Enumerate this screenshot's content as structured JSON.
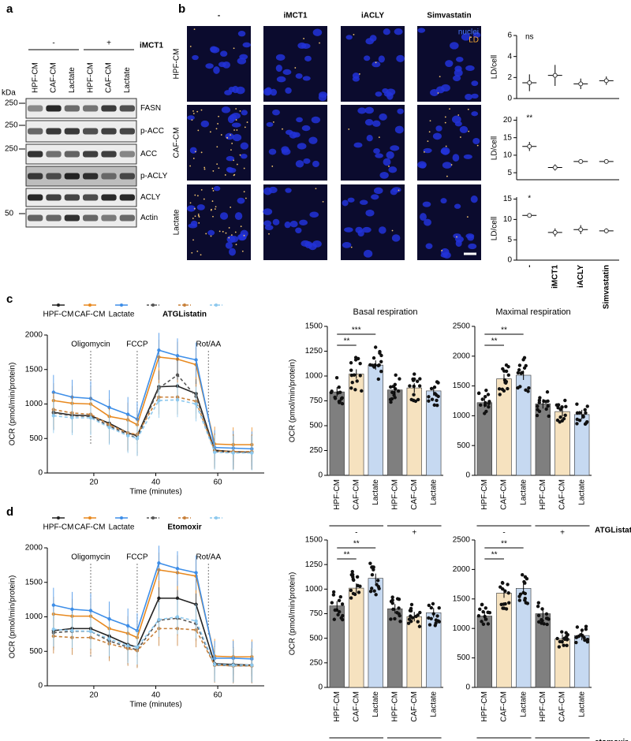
{
  "panel_labels": [
    "a",
    "b",
    "c",
    "d"
  ],
  "blot": {
    "kda_label": "kDa",
    "treatment_label": "iMCT1",
    "groups": [
      "-",
      "+"
    ],
    "lanes": [
      "HPF-CM",
      "CAF-CM",
      "Lactate",
      "HPF-CM",
      "CAF-CM",
      "Lactate"
    ],
    "rows": [
      {
        "marker": "250",
        "label": "FASN"
      },
      {
        "marker": "250",
        "label": "p-ACC"
      },
      {
        "marker": "250",
        "label": "ACC"
      },
      {
        "marker": null,
        "label": "p-ACLY"
      },
      {
        "marker": null,
        "label": "ACLY"
      },
      {
        "marker": "50",
        "label": "Actin"
      }
    ]
  },
  "microscopy": {
    "columns": [
      "-",
      "iMCT1",
      "iACLY",
      "Simvastatin"
    ],
    "rows": [
      "HPF-CM",
      "CAF-CM",
      "Lactate"
    ],
    "channels": [
      "nuclei",
      "LD"
    ]
  },
  "chart_data": [
    {
      "type": "dot",
      "ylabel": "LD/cell",
      "categories": [
        null,
        null,
        null,
        null
      ],
      "values": [
        1.5,
        2.2,
        1.4,
        1.7
      ],
      "errors": [
        0.8,
        1.0,
        0.5,
        0.4
      ],
      "annotation": "ns",
      "ylim": [
        0,
        6
      ],
      "yticks": [
        0,
        2,
        4,
        6
      ]
    },
    {
      "type": "dot",
      "ylabel": "LD/cell",
      "categories": [
        null,
        null,
        null,
        null
      ],
      "values": [
        12.5,
        6.5,
        8.2,
        8.2
      ],
      "errors": [
        1.3,
        0.9,
        0.2,
        0.4
      ],
      "annotation": "**",
      "ylim": [
        3,
        21
      ],
      "yticks": [
        5,
        10,
        15,
        20
      ]
    },
    {
      "type": "dot",
      "ylabel": "LD/cell",
      "categories": [
        "-",
        "iMCT1",
        "iACLY",
        "Simvastatin"
      ],
      "values": [
        11,
        6.8,
        7.5,
        7.2
      ],
      "errors": [
        0.4,
        1.0,
        1.1,
        0.6
      ],
      "annotation": "*",
      "ylim": [
        0,
        15.5
      ],
      "yticks": [
        0,
        5,
        10,
        15
      ]
    },
    {
      "type": "line",
      "xlabel": "Time (minutes)",
      "ylabel": "OCR (pmol/min/protein)",
      "legend_group_label": "ATGListatin",
      "x": [
        7,
        13,
        19,
        25,
        31,
        34,
        41,
        47,
        53,
        59,
        65,
        71
      ],
      "xlim": [
        5,
        75
      ],
      "xticks": [
        20,
        40,
        60
      ],
      "ylim": [
        0,
        2000
      ],
      "yticks": [
        0,
        500,
        1000,
        1500,
        2000
      ],
      "markers": [
        {
          "label": "Oligomycin",
          "x": 19
        },
        {
          "label": "FCCP",
          "x": 34
        },
        {
          "label": "Rot/AA",
          "x": 57
        }
      ],
      "series": [
        {
          "name": "HPF-CM",
          "color": "#222222",
          "values": [
            880,
            840,
            830,
            720,
            580,
            540,
            1250,
            1260,
            1150,
            330,
            310,
            300
          ]
        },
        {
          "name": "CAF-CM",
          "color": "#e8891f",
          "values": [
            1050,
            1010,
            1000,
            820,
            770,
            700,
            1680,
            1650,
            1570,
            420,
            410,
            410
          ]
        },
        {
          "name": "Lactate",
          "color": "#3d8ee8",
          "values": [
            1170,
            1100,
            1080,
            950,
            850,
            780,
            1780,
            1700,
            1640,
            370,
            360,
            350
          ]
        },
        {
          "color": "#555555",
          "dashed": true,
          "values": [
            870,
            830,
            820,
            680,
            560,
            500,
            1230,
            1420,
            1110,
            310,
            300,
            300
          ]
        },
        {
          "color": "#c8803a",
          "dashed": true,
          "values": [
            920,
            870,
            850,
            700,
            580,
            560,
            1100,
            1100,
            1040,
            320,
            310,
            310
          ]
        },
        {
          "color": "#8cc8ee",
          "dashed": true,
          "values": [
            830,
            800,
            800,
            660,
            540,
            500,
            1050,
            1060,
            1000,
            300,
            290,
            290
          ]
        }
      ]
    },
    {
      "type": "bar",
      "title": "Basal respiration",
      "ylabel": "OCR (pmol/min/protein)",
      "categories": [
        "HPF-CM",
        "CAF-CM",
        "Lactate",
        "HPF-CM",
        "CAF-CM",
        "Lactate"
      ],
      "values": [
        840,
        1020,
        1110,
        860,
        880,
        850
      ],
      "colors": [
        "#7f7f7f",
        "#f6e2bf",
        "#c6d9f1",
        "#7f7f7f",
        "#f6e2bf",
        "#c6d9f1"
      ],
      "groups": [
        "-",
        "+"
      ],
      "significance": [
        {
          "pair": [
            0,
            1
          ],
          "label": "**"
        },
        {
          "pair": [
            0,
            2
          ],
          "label": "***"
        }
      ],
      "ylim": [
        0,
        1500
      ],
      "yticks": [
        0,
        250,
        500,
        750,
        1000,
        1250,
        1500
      ]
    },
    {
      "type": "bar",
      "title": "Maximal respiration",
      "categories": [
        "HPF-CM",
        "CAF-CM",
        "Lactate",
        "HPF-CM",
        "CAF-CM",
        "Lactate"
      ],
      "values": [
        1220,
        1620,
        1680,
        1200,
        1070,
        1020
      ],
      "colors": [
        "#7f7f7f",
        "#f6e2bf",
        "#c6d9f1",
        "#7f7f7f",
        "#f6e2bf",
        "#c6d9f1"
      ],
      "groups": [
        "-",
        "+"
      ],
      "treatment": "ATGListatin",
      "significance": [
        {
          "pair": [
            0,
            1
          ],
          "label": "**"
        },
        {
          "pair": [
            0,
            2
          ],
          "label": "**"
        }
      ],
      "ylim": [
        0,
        2500
      ],
      "yticks": [
        0,
        500,
        1000,
        1500,
        2000,
        2500
      ]
    },
    {
      "type": "line",
      "xlabel": "Time (minutes)",
      "ylabel": "OCR (pmol/min/protein)",
      "legend_group_label": "Etomoxir",
      "x": [
        7,
        13,
        19,
        25,
        31,
        34,
        41,
        47,
        53,
        59,
        65,
        71
      ],
      "xlim": [
        5,
        75
      ],
      "xticks": [
        20,
        40,
        60
      ],
      "ylim": [
        0,
        2000
      ],
      "yticks": [
        0,
        500,
        1000,
        1500,
        2000
      ],
      "markers": [
        {
          "label": "Oligomycin",
          "x": 19
        },
        {
          "label": "FCCP",
          "x": 34
        },
        {
          "label": "Rot/AA",
          "x": 57
        }
      ],
      "series": [
        {
          "name": "HPF-CM",
          "color": "#222222",
          "values": [
            800,
            830,
            830,
            720,
            600,
            560,
            1270,
            1270,
            1180,
            320,
            310,
            300
          ]
        },
        {
          "name": "CAF-CM",
          "color": "#e8891f",
          "values": [
            1040,
            1010,
            1010,
            830,
            760,
            700,
            1680,
            1640,
            1590,
            430,
            420,
            420
          ]
        },
        {
          "name": "Lactate",
          "color": "#3d8ee8",
          "values": [
            1170,
            1110,
            1090,
            970,
            870,
            800,
            1780,
            1700,
            1640,
            400,
            400,
            390
          ]
        },
        {
          "color": "#555555",
          "dashed": true,
          "values": [
            770,
            790,
            790,
            650,
            560,
            520,
            950,
            980,
            900,
            300,
            290,
            290
          ]
        },
        {
          "color": "#c8803a",
          "dashed": true,
          "values": [
            720,
            700,
            700,
            610,
            540,
            510,
            830,
            830,
            810,
            300,
            290,
            290
          ]
        },
        {
          "color": "#8cc8ee",
          "dashed": true,
          "values": [
            820,
            800,
            790,
            680,
            580,
            560,
            960,
            1000,
            940,
            310,
            300,
            300
          ]
        }
      ]
    },
    {
      "type": "bar",
      "ylabel": "OCR (pmol/min/protein)",
      "categories": [
        "HPF-CM",
        "CAF-CM",
        "Lactate",
        "HPF-CM",
        "CAF-CM",
        "Lactate"
      ],
      "values": [
        830,
        1010,
        1110,
        800,
        720,
        760
      ],
      "colors": [
        "#7f7f7f",
        "#f6e2bf",
        "#c6d9f1",
        "#7f7f7f",
        "#f6e2bf",
        "#c6d9f1"
      ],
      "groups": [
        "-",
        "+"
      ],
      "significance": [
        {
          "pair": [
            0,
            1
          ],
          "label": "**"
        },
        {
          "pair": [
            0,
            2
          ],
          "label": "**"
        }
      ],
      "ylim": [
        0,
        1500
      ],
      "yticks": [
        0,
        250,
        500,
        750,
        1000,
        1250,
        1500
      ]
    },
    {
      "type": "bar",
      "categories": [
        "HPF-CM",
        "CAF-CM",
        "Lactate",
        "HPF-CM",
        "CAF-CM",
        "Lactate"
      ],
      "values": [
        1210,
        1600,
        1680,
        1250,
        820,
        880
      ],
      "colors": [
        "#7f7f7f",
        "#f6e2bf",
        "#c6d9f1",
        "#7f7f7f",
        "#f6e2bf",
        "#c6d9f1"
      ],
      "groups": [
        "-",
        "+"
      ],
      "treatment": "etomoxir",
      "significance": [
        {
          "pair": [
            0,
            1
          ],
          "label": "**"
        },
        {
          "pair": [
            0,
            2
          ],
          "label": "**"
        }
      ],
      "ylim": [
        0,
        2500
      ],
      "yticks": [
        0,
        500,
        1000,
        1500,
        2000,
        2500
      ]
    }
  ]
}
